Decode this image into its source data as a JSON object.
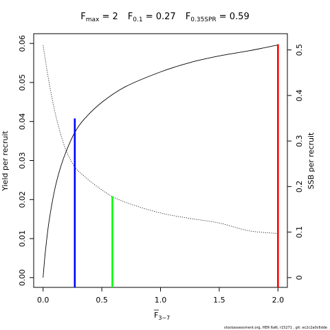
{
  "chart_data": {
    "type": "line",
    "title": {
      "fmax_base": "F",
      "fmax_sub": "max",
      "fmax_value": " = 2",
      "f01_base": "F",
      "f01_sub": "0.1",
      "f01_value": " = 0.27",
      "fspr_base": "F",
      "fspr_sub": "0.35SPR",
      "fspr_value": " = 0.59"
    },
    "xlabel": {
      "base": "F",
      "sub": "3−7",
      "overline": true
    },
    "ylabel_left": "Yield per recruit",
    "ylabel_right": "SSB per recruit",
    "xlim": [
      -0.08,
      2.08
    ],
    "ylim_left": [
      -0.0025,
      0.0625
    ],
    "ylim_right": [
      -0.0214,
      0.5357
    ],
    "x_ticks": [
      {
        "value": 0.0,
        "label": "0.0"
      },
      {
        "value": 0.5,
        "label": "0.5"
      },
      {
        "value": 1.0,
        "label": "1.0"
      },
      {
        "value": 1.5,
        "label": "1.5"
      },
      {
        "value": 2.0,
        "label": "2.0"
      }
    ],
    "y_left_ticks": [
      {
        "value": 0.0,
        "label": "0.00"
      },
      {
        "value": 0.01,
        "label": "0.01"
      },
      {
        "value": 0.02,
        "label": "0.02"
      },
      {
        "value": 0.03,
        "label": "0.03"
      },
      {
        "value": 0.04,
        "label": "0.04"
      },
      {
        "value": 0.05,
        "label": "0.05"
      },
      {
        "value": 0.06,
        "label": "0.06"
      }
    ],
    "y_right_ticks": [
      {
        "value": 0.0,
        "label": "0"
      },
      {
        "value": 0.1,
        "label": "0.1"
      },
      {
        "value": 0.2,
        "label": "0.2"
      },
      {
        "value": 0.3,
        "label": "0.3"
      },
      {
        "value": 0.4,
        "label": "0.4"
      },
      {
        "value": 0.5,
        "label": "0.5"
      }
    ],
    "series": [
      {
        "axis": "left",
        "style": "solid",
        "color": "#000000",
        "x": [
          0,
          0.01,
          0.02,
          0.05,
          0.1,
          0.15,
          0.2,
          0.27,
          0.35,
          0.5,
          0.7,
          1.0,
          1.25,
          1.5,
          1.75,
          2.0
        ],
        "y": [
          0,
          0.0036,
          0.0068,
          0.0143,
          0.0227,
          0.0284,
          0.0326,
          0.0372,
          0.0406,
          0.0449,
          0.0489,
          0.0527,
          0.0551,
          0.0568,
          0.0581,
          0.0596
        ]
      },
      {
        "axis": "right",
        "style": "dotted",
        "color": "#000000",
        "x": [
          0,
          0.05,
          0.1,
          0.15,
          0.2,
          0.27,
          0.35,
          0.45,
          0.59,
          0.75,
          1.0,
          1.25,
          1.5,
          1.75,
          2.0
        ],
        "y": [
          0.51,
          0.43,
          0.365,
          0.315,
          0.277,
          0.243,
          0.223,
          0.202,
          0.178,
          0.161,
          0.142,
          0.13,
          0.12,
          0.103,
          0.097
        ]
      }
    ],
    "reference_lines": [
      {
        "axis": "left",
        "x": 0.27,
        "y_top": 0.0408,
        "color": "#0000ff"
      },
      {
        "axis": "left",
        "x": 0.59,
        "y_top": 0.0208,
        "color": "#00ff00"
      },
      {
        "axis": "left",
        "x": 2.0,
        "y_top": 0.0598,
        "color": "#ff0000"
      }
    ]
  },
  "footer_note": "stockassessment.org, HER 6aN, r15271 , git: ec2c2a0c6dde"
}
